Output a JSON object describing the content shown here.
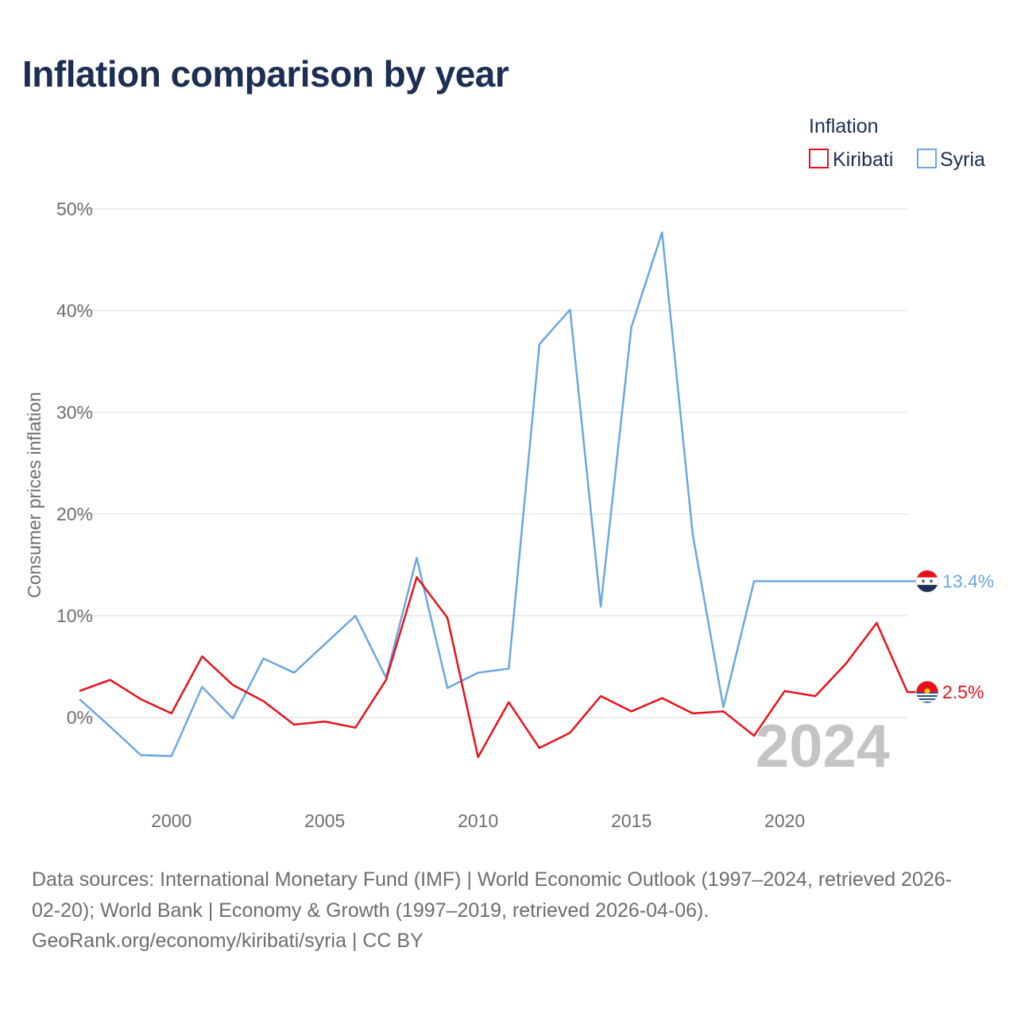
{
  "title": "Inflation comparison by year",
  "chart_data": {
    "type": "line",
    "title": "Inflation comparison by year",
    "ylabel": "Consumer prices inflation",
    "xlabel": "",
    "ylim": [
      -7.5,
      52
    ],
    "xlim": [
      1997,
      2024
    ],
    "yticks": [
      0,
      10,
      20,
      30,
      40,
      50
    ],
    "ytick_labels": [
      "0%",
      "10%",
      "20%",
      "30%",
      "40%",
      "50%"
    ],
    "xticks": [
      2000,
      2005,
      2010,
      2015,
      2020
    ],
    "xtick_labels": [
      "2000",
      "2005",
      "2010",
      "2015",
      "2020"
    ],
    "grid": true,
    "legend_title": "Inflation",
    "legend_position": "top-right",
    "year_watermark": "2024",
    "x": [
      1997,
      1998,
      1999,
      2000,
      2001,
      2002,
      2003,
      2004,
      2005,
      2006,
      2007,
      2008,
      2009,
      2010,
      2011,
      2012,
      2013,
      2014,
      2015,
      2016,
      2017,
      2018,
      2019,
      2020,
      2021,
      2022,
      2023,
      2024
    ],
    "series": [
      {
        "name": "Kiribati",
        "color": "#e8111b",
        "values": [
          2.6,
          3.7,
          1.8,
          0.4,
          6.0,
          3.2,
          1.6,
          -0.7,
          -0.4,
          -1.0,
          3.7,
          13.8,
          9.8,
          -3.9,
          1.5,
          -3.0,
          -1.5,
          2.1,
          0.6,
          1.9,
          0.4,
          0.6,
          -1.8,
          2.6,
          2.1,
          5.3,
          9.3,
          2.5
        ],
        "end_label": "2.5%"
      },
      {
        "name": "Syria",
        "color": "#6aa7e0",
        "values": [
          1.8,
          -0.9,
          -3.7,
          -3.8,
          3.0,
          -0.1,
          5.8,
          4.4,
          7.2,
          10.0,
          3.9,
          15.7,
          2.9,
          4.4,
          4.8,
          36.7,
          40.1,
          10.9,
          38.4,
          47.7,
          18.0,
          1.0,
          13.4,
          13.4,
          13.4,
          13.4,
          13.4,
          13.4
        ],
        "end_label": "13.4%"
      }
    ]
  },
  "sources": {
    "line1": "Data sources: International Monetary Fund (IMF) | World Economic Outlook (1997–2024, retrieved 2026-",
    "line2": "02-20); World Bank | Economy & Growth (1997–2019, retrieved 2026-04-06).",
    "line3": "GeoRank.org/economy/kiribati/syria | CC BY"
  }
}
